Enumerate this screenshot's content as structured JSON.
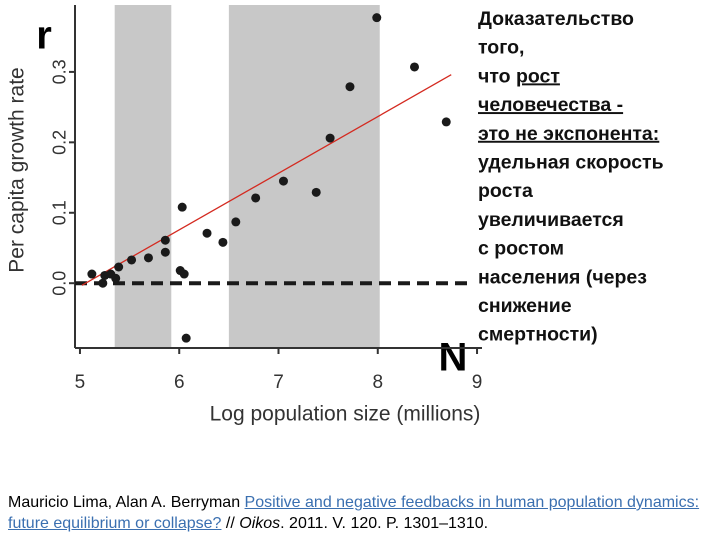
{
  "chart_data": {
    "type": "scatter",
    "ylabel": "Per capita growth rate",
    "xlabel": "Log population size (millions)",
    "annotations": {
      "y_symbol": "r",
      "x_symbol": "N"
    },
    "x": [
      7.99,
      8.37,
      7.72,
      8.69,
      7.52,
      7.05,
      7.38,
      6.77,
      6.03,
      6.57,
      6.28,
      6.44,
      5.86,
      5.86,
      5.69,
      5.52,
      5.39,
      5.12,
      5.25,
      5.31,
      5.36,
      5.23,
      6.01,
      6.05,
      6.07
    ],
    "y": [
      0.377,
      0.307,
      0.279,
      0.229,
      0.206,
      0.145,
      0.129,
      0.121,
      0.108,
      0.087,
      0.071,
      0.058,
      0.061,
      0.044,
      0.036,
      0.033,
      0.023,
      0.013,
      0.011,
      0.013,
      0.007,
      0.0,
      0.018,
      0.013,
      -0.078
    ],
    "color": "#1a1a1a",
    "shaded_ranges": [
      [
        5.35,
        5.92
      ],
      [
        6.5,
        8.02
      ]
    ],
    "shade_color": "#c8c8c8",
    "fit_line": {
      "x": [
        5.02,
        8.74
      ],
      "y": [
        -0.003,
        0.296
      ],
      "color": "#d42a20"
    },
    "reference_line": {
      "y": 0,
      "color": "#1a1a1a"
    },
    "xlim": [
      4.95,
      9.05
    ],
    "ylim": [
      -0.092,
      0.395
    ],
    "xticks": [
      5,
      6,
      7,
      8,
      9
    ],
    "yticks": [
      {
        "value": 0,
        "label": "0.0"
      },
      0.1,
      0.2,
      0.3
    ]
  },
  "slide_text": [
    [
      {
        "text": "Доказательство",
        "underline": false
      }
    ],
    [
      {
        "text": "того,",
        "underline": false
      }
    ],
    [
      {
        "text": "что ",
        "underline": false
      },
      {
        "text": "рост",
        "underline": true
      }
    ],
    [
      {
        "text": "человечества -",
        "underline": true
      }
    ],
    [
      {
        "text": "это не экспонента:",
        "underline": true
      }
    ],
    [
      {
        "text": "удельная скорость",
        "underline": false
      }
    ],
    [
      {
        "text": "роста",
        "underline": false
      }
    ],
    [
      {
        "text": "увеличивается",
        "underline": false
      }
    ],
    [
      {
        "text": "с ростом",
        "underline": false
      }
    ],
    [
      {
        "text": "населения (через",
        "underline": false
      }
    ],
    [
      {
        "text": "снижение",
        "underline": false
      }
    ],
    [
      {
        "text": "смертности)",
        "underline": false
      }
    ]
  ],
  "citation": {
    "authors": "Mauricio Lima, Alan A. Berryman",
    "link": "Positive and negative feedbacks in human population dynamics: future equilibrium or collapse?",
    "sep": "//",
    "journal": "Oikos",
    "details": ". 2011. V. 120. P. 1301–1310."
  }
}
